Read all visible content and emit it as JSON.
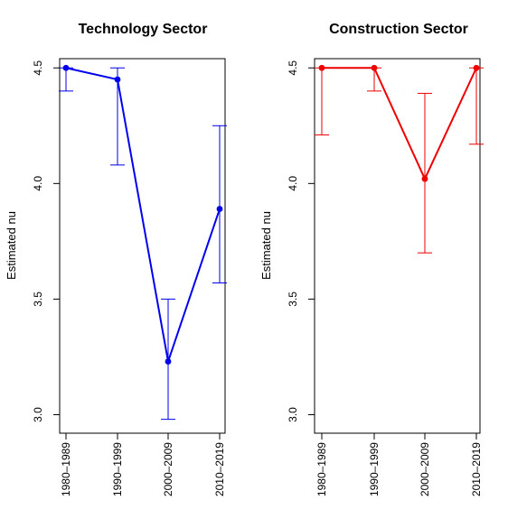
{
  "chart_data": [
    {
      "type": "line",
      "title": "Technology Sector",
      "ylabel": "Estimated nu",
      "xlabel": "",
      "categories": [
        "1980–1989",
        "1990–1999",
        "2000–2009",
        "2010–2019"
      ],
      "series": [
        {
          "values": [
            4.5,
            4.45,
            3.23,
            3.89
          ],
          "lower": [
            4.4,
            4.08,
            2.98,
            3.57
          ],
          "upper": [
            4.5,
            4.5,
            3.5,
            4.25
          ]
        }
      ],
      "ylim": [
        2.92,
        4.54
      ],
      "yticks": [
        3.0,
        3.5,
        4.0,
        4.5
      ],
      "ytick_labels": [
        "3.0",
        "3.5",
        "4.0",
        "4.5"
      ],
      "color": "#0000ee",
      "grid": false
    },
    {
      "type": "line",
      "title": "Construction Sector",
      "ylabel": "Estimated nu",
      "xlabel": "",
      "categories": [
        "1980–1989",
        "1990–1999",
        "2000–2009",
        "2010–2019"
      ],
      "series": [
        {
          "values": [
            4.5,
            4.5,
            4.02,
            4.5
          ],
          "lower": [
            4.21,
            4.4,
            3.7,
            4.17
          ],
          "upper": [
            4.5,
            4.5,
            4.39,
            4.5
          ]
        }
      ],
      "ylim": [
        2.92,
        4.54
      ],
      "yticks": [
        3.0,
        3.5,
        4.0,
        4.5
      ],
      "ytick_labels": [
        "3.0",
        "3.5",
        "4.0",
        "4.5"
      ],
      "color": "#ee0000",
      "grid": false
    }
  ]
}
